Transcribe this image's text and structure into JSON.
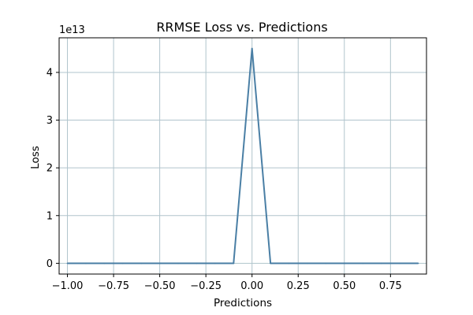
{
  "chart_data": {
    "type": "line",
    "title": "RRMSE Loss vs. Predictions",
    "xlabel": "Predictions",
    "ylabel": "Loss",
    "y_offset_label": "1e13",
    "y_scale_factor": 10000000000000,
    "xlim": [
      -1.045,
      0.945
    ],
    "ylim": [
      -0.225,
      4.725
    ],
    "x_ticks": [
      -1.0,
      -0.75,
      -0.5,
      -0.25,
      0.0,
      0.25,
      0.5,
      0.75
    ],
    "x_tick_labels": [
      "−1.00",
      "−0.75",
      "−0.50",
      "−0.25",
      "0.00",
      "0.25",
      "0.50",
      "0.75"
    ],
    "y_ticks": [
      0,
      1,
      2,
      3,
      4
    ],
    "y_tick_labels": [
      "0",
      "1",
      "2",
      "3",
      "4"
    ],
    "grid": true,
    "series": [
      {
        "color": "#4a7fa5",
        "x": [
          -1.0,
          -0.9,
          -0.8,
          -0.7,
          -0.6,
          -0.5,
          -0.4,
          -0.3,
          -0.2,
          -0.1,
          0.0,
          0.1,
          0.2,
          0.3,
          0.4,
          0.5,
          0.6,
          0.7,
          0.8,
          0.9
        ],
        "y": [
          0,
          0,
          0,
          0,
          0,
          0,
          0,
          0,
          0,
          0,
          4.5,
          0,
          0,
          0,
          0,
          0,
          0,
          0,
          0,
          0
        ]
      }
    ]
  }
}
